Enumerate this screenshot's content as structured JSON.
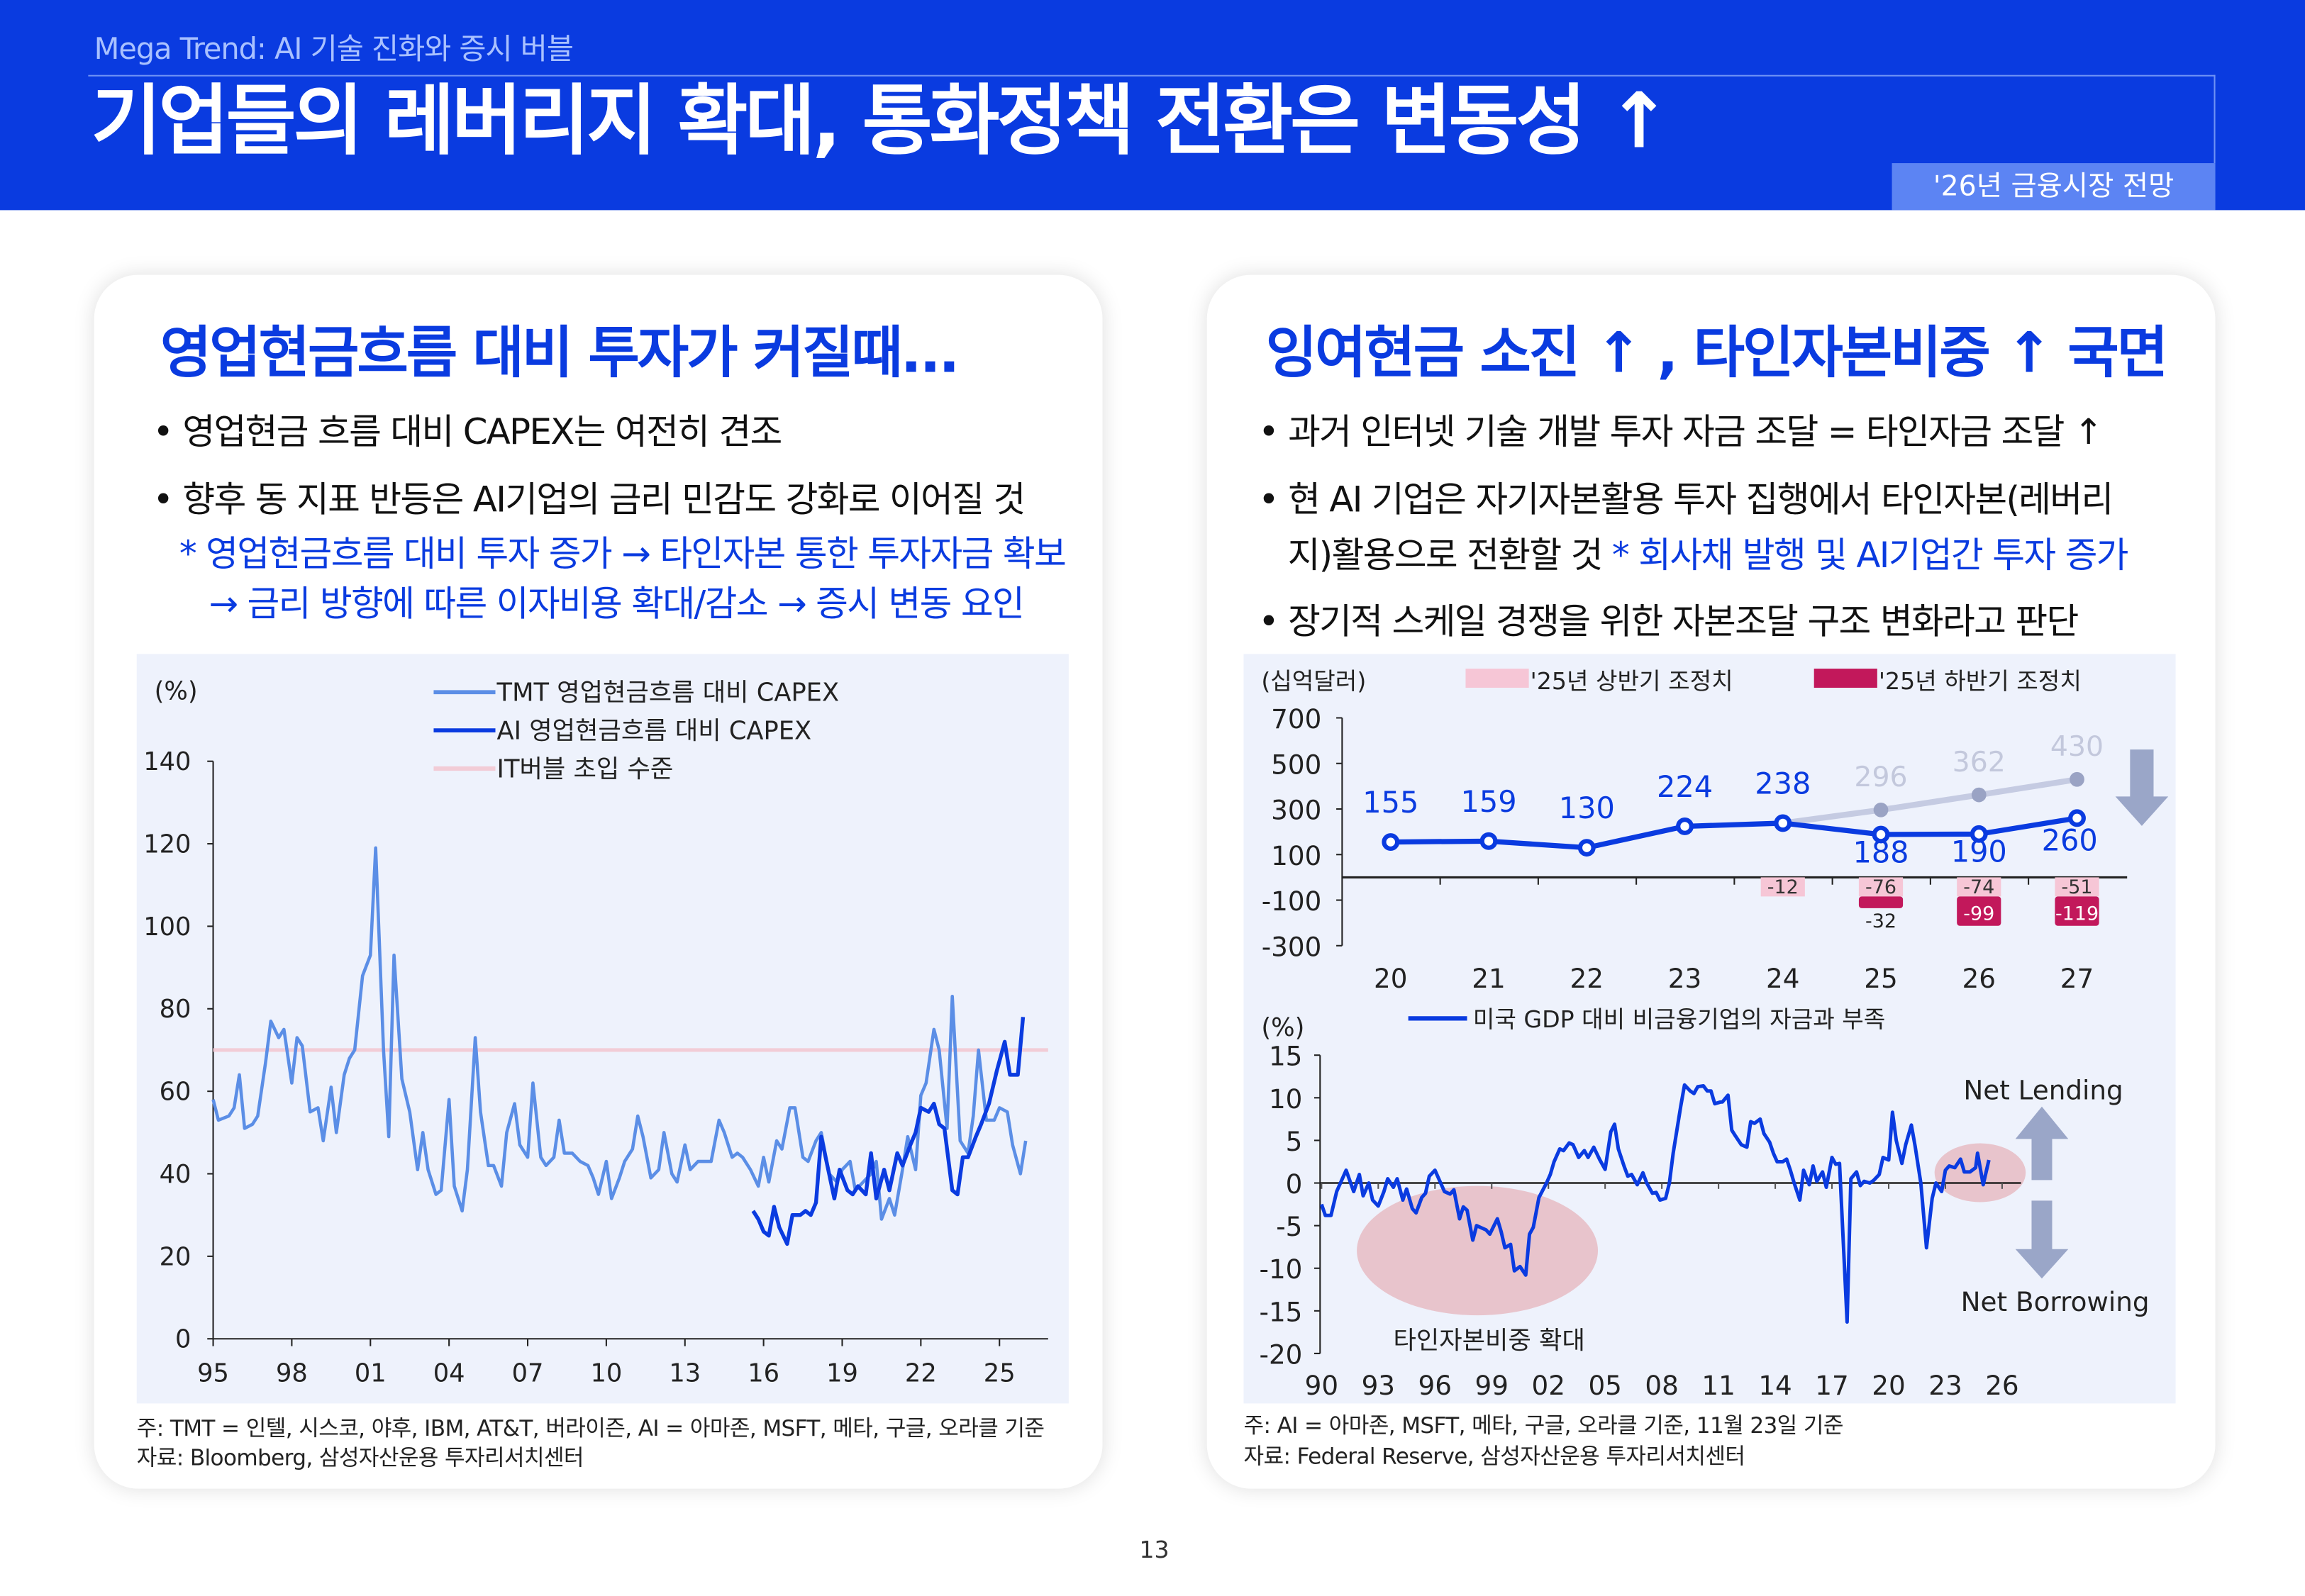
{
  "header": {
    "subtitle": "Mega Trend: AI 기술 진화와 증시 버블",
    "title": "기업들의 레버리지 확대, 통화정책 전환은 변동성 ↑",
    "tag": "'26년 금융시장 전망",
    "brand_color": "#0a3be0"
  },
  "left_card": {
    "heading": "영업현금흐름 대비 투자가 커질때...",
    "bullets": [
      "• 영업현금 흐름 대비 CAPEX는 여전히 견조",
      "• 향후 동 지표 반등은 AI기업의 금리 민감도 강화로 이어질 것"
    ],
    "notes": [
      "* 영업현금흐름 대비 투자 증가 → 타인자본 통한 투자자금 확보",
      "→ 금리 방향에 따른 이자비용 확대/감소 → 증시 변동 요인"
    ],
    "footnote": "주: TMT = 인텔, 시스코, 야후, IBM, AT&T, 버라이즌, AI = 아마존, MSFT, 메타, 구글, 오라클 기준",
    "source": "자료: Bloomberg, 삼성자산운용 투자리서치센터"
  },
  "right_card": {
    "heading": "잉여현금 소진 ↑ , 타인자본비중 ↑ 국면",
    "bullets": [
      "• 과거 인터넷 기술 개발 투자 자금 조달 = 타인자금 조달 ↑",
      "• 현 AI 기업은 자기자본활용 투자 집행에서 타인자본(레버리",
      "지)활용으로 전환할 것 ",
      "* 회사채 발행 및 AI기업간 투자 증가",
      "• 장기적 스케일 경쟁을 위한 자본조달 구조 변화라고 판단"
    ],
    "footnote": "주: AI = 아마존, MSFT, 메타, 구글, 오라클 기준, 11월 23일 기준",
    "source": "자료: Federal Reserve, 삼성자산운용 투자리서치센터"
  },
  "page_number": "13",
  "chart_data": [
    {
      "type": "line",
      "ylabel": "(%)",
      "ylim": [
        0,
        140
      ],
      "yticks": [
        "0",
        "20",
        "40",
        "60",
        "80",
        "100",
        "120",
        "140"
      ],
      "xticks": [
        "95",
        "98",
        "01",
        "04",
        "07",
        "10",
        "13",
        "16",
        "19",
        "22",
        "25"
      ],
      "legend_position": "top",
      "series": [
        {
          "name": "TMT 영업현금흐름 대비 CAPEX",
          "color": "#5b8ee6",
          "x": [
            1995.0,
            1995.2,
            1995.6,
            1995.8,
            1996.0,
            1996.2,
            1996.5,
            1996.7,
            1997.0,
            1997.2,
            1997.5,
            1997.7,
            1998.0,
            1998.2,
            1998.4,
            1998.7,
            1999.0,
            1999.2,
            1999.5,
            1999.7,
            2000.0,
            2000.2,
            2000.4,
            2000.7,
            2001.0,
            2001.2,
            2001.5,
            2001.7,
            2001.9,
            2002.2,
            2002.5,
            2002.8,
            2003.0,
            2003.2,
            2003.5,
            2003.7,
            2004.0,
            2004.2,
            2004.5,
            2004.7,
            2005.0,
            2005.2,
            2005.5,
            2005.7,
            2006.0,
            2006.2,
            2006.5,
            2006.7,
            2007.0,
            2007.2,
            2007.5,
            2007.7,
            2008.0,
            2008.2,
            2008.4,
            2008.7,
            2009.0,
            2009.3,
            2009.5,
            2009.7,
            2010.0,
            2010.2,
            2010.5,
            2010.7,
            2011.0,
            2011.2,
            2011.4,
            2011.7,
            2012.0,
            2012.2,
            2012.5,
            2012.7,
            2013.0,
            2013.2,
            2013.5,
            2014.0,
            2014.3,
            2014.5,
            2014.8,
            2015.0,
            2015.2,
            2015.5,
            2015.8,
            2016.0,
            2016.2,
            2016.5,
            2016.7,
            2017.0,
            2017.2,
            2017.5,
            2017.7,
            2018.0,
            2018.2,
            2018.5,
            2018.8,
            2019.0,
            2019.3,
            2019.5,
            2019.8,
            2020.1,
            2020.3,
            2020.5,
            2020.8,
            2021.0,
            2021.3,
            2021.5,
            2021.8,
            2022.0,
            2022.2,
            2022.5,
            2022.7,
            2023.0,
            2023.2,
            2023.5,
            2023.8,
            2024.0,
            2024.2,
            2024.5,
            2024.8,
            2025.0,
            2025.3,
            2025.5,
            2025.8,
            2026.0
          ],
          "y": [
            58,
            53,
            54,
            56,
            64,
            51,
            52,
            54,
            67,
            77,
            73,
            75,
            62,
            73,
            71,
            55,
            56,
            48,
            61,
            50,
            64,
            68,
            70,
            88,
            93,
            119,
            70,
            49,
            93,
            63,
            55,
            41,
            50,
            41,
            35,
            36,
            58,
            37,
            31,
            41,
            73,
            55,
            42,
            42,
            37,
            50,
            57,
            47,
            44,
            62,
            44,
            42,
            44,
            53,
            45,
            45,
            43,
            42,
            39,
            35,
            43,
            34,
            39,
            43,
            46,
            54,
            49,
            39,
            41,
            50,
            40,
            38,
            47,
            41,
            43,
            43,
            53,
            50,
            44,
            45,
            44,
            41,
            37,
            44,
            38,
            48,
            46,
            56,
            56,
            44,
            43,
            48,
            50,
            40,
            38,
            41,
            43,
            36,
            38,
            40,
            43,
            29,
            34,
            30,
            41,
            49,
            41,
            59,
            62,
            75,
            70,
            51,
            83,
            48,
            45,
            54,
            70,
            53,
            53,
            56,
            55,
            47,
            40,
            48
          ]
        },
        {
          "name": "AI 영업현금흐름 대비 CAPEX",
          "color": "#0a3be0",
          "x": [
            2015.6,
            2015.8,
            2016.0,
            2016.2,
            2016.4,
            2016.6,
            2016.9,
            2017.1,
            2017.4,
            2017.6,
            2017.8,
            2018.0,
            2018.2,
            2018.4,
            2018.7,
            2018.9,
            2019.2,
            2019.4,
            2019.6,
            2019.9,
            2020.1,
            2020.3,
            2020.6,
            2020.8,
            2021.1,
            2021.3,
            2021.6,
            2021.8,
            2022.0,
            2022.3,
            2022.5,
            2022.7,
            2022.9,
            2023.2,
            2023.4,
            2023.6,
            2023.8,
            2024.1,
            2024.3,
            2024.6,
            2024.9,
            2025.2,
            2025.4,
            2025.7,
            2025.9
          ],
          "y": [
            31,
            29,
            26,
            25,
            32,
            27,
            23,
            30,
            30,
            31,
            30,
            33,
            49,
            43,
            34,
            41,
            36,
            35,
            37,
            35,
            45,
            34,
            41,
            36,
            45,
            42,
            47,
            50,
            56,
            55,
            57,
            52,
            51,
            36,
            35,
            44,
            44,
            49,
            52,
            57,
            65,
            72,
            64,
            64,
            78
          ]
        },
        {
          "name": "IT버블 초입 수준",
          "color": "#f2ccd6",
          "constant": 70
        }
      ]
    },
    {
      "type": "line+bar",
      "unit_label": "(십억달러)",
      "ylim": [
        -300,
        700
      ],
      "yticks": [
        "700",
        "500",
        "300",
        "100",
        "-100",
        "-300"
      ],
      "categories": [
        "20",
        "21",
        "22",
        "23",
        "24",
        "25",
        "26",
        "27"
      ],
      "series": [
        {
          "role": "current",
          "color": "#0a3be0",
          "values": [
            155,
            159,
            130,
            224,
            238,
            188,
            190,
            260
          ]
        },
        {
          "role": "previous",
          "color": "#c5cbe2",
          "values": [
            null,
            null,
            null,
            null,
            238,
            296,
            362,
            430
          ]
        },
        {
          "name": "'25년 상반기 조정치",
          "color": "#f6c6d6",
          "values": [
            null,
            null,
            null,
            null,
            -12,
            -76,
            -74,
            -51
          ]
        },
        {
          "name": "'25년 하반기 조정치",
          "color": "#c2185b",
          "values": [
            null,
            null,
            null,
            null,
            null,
            -32,
            -99,
            -119
          ]
        }
      ],
      "arrow": "down-arrow"
    },
    {
      "type": "line",
      "ylabel": "(%)",
      "ylim": [
        -20,
        15
      ],
      "yticks": [
        "15",
        "10",
        "5",
        "0",
        "-5",
        "-10",
        "-15",
        "-20"
      ],
      "xticks": [
        "90",
        "93",
        "96",
        "99",
        "02",
        "05",
        "08",
        "11",
        "14",
        "17",
        "20",
        "23",
        "26"
      ],
      "series": [
        {
          "name": "미국 GDP 대비 비금융기업의 자금과 부족",
          "color": "#0a3be0",
          "x": [
            1990.0,
            1990.2,
            1990.5,
            1990.8,
            1991.3,
            1991.7,
            1992.0,
            1992.2,
            1992.5,
            1992.7,
            1993.0,
            1993.3,
            1993.5,
            1993.8,
            1994.0,
            1994.3,
            1994.5,
            1994.8,
            1995.0,
            1995.3,
            1995.5,
            1995.7,
            1996.0,
            1996.3,
            1996.5,
            1996.8,
            1997.0,
            1997.3,
            1997.5,
            1997.7,
            1998.0,
            1998.2,
            1998.5,
            1998.7,
            1998.9,
            1999.3,
            1999.5,
            1999.7,
            2000.0,
            2000.2,
            2000.5,
            2000.8,
            2001.0,
            2001.2,
            2001.5,
            2001.9,
            2002.1,
            2002.3,
            2002.6,
            2002.8,
            2003.1,
            2003.3,
            2003.6,
            2003.9,
            2004.1,
            2004.4,
            2004.7,
            2005.0,
            2005.3,
            2005.5,
            2005.7,
            2006.0,
            2006.2,
            2006.4,
            2006.7,
            2007.0,
            2007.2,
            2007.5,
            2007.7,
            2007.9,
            2008.2,
            2008.4,
            2008.6,
            2009.0,
            2009.2,
            2009.5,
            2009.7,
            2009.9,
            2010.2,
            2010.4,
            2010.6,
            2010.8,
            2011.1,
            2011.2,
            2011.5,
            2011.7,
            2011.9,
            2012.2,
            2012.5,
            2012.7,
            2012.9,
            2013.2,
            2013.4,
            2013.7,
            2013.9,
            2014.1,
            2014.4,
            2014.6,
            2014.8,
            2015.0,
            2015.3,
            2015.5,
            2015.8,
            2016.0,
            2016.2,
            2016.5,
            2016.7,
            2017.0,
            2017.2,
            2017.4,
            2017.8,
            2018.0,
            2018.3,
            2018.5,
            2018.7,
            2019.0,
            2019.2,
            2019.5,
            2019.7,
            2020.0,
            2020.2,
            2020.4,
            2020.7,
            2020.9,
            2021.2,
            2021.4,
            2021.7,
            2022.0,
            2022.3,
            2022.5,
            2022.8,
            2023.0,
            2023.2,
            2023.5,
            2023.8,
            2024.0,
            2024.3,
            2024.6,
            2024.7,
            2025.0,
            2025.3
          ],
          "y": [
            -2.5,
            -3.8,
            -3.8,
            -1,
            1.5,
            -1,
            1,
            -1.5,
            0,
            -2,
            -2.7,
            -1,
            0.5,
            -0.5,
            0.5,
            -2,
            -0.7,
            -3,
            -3.5,
            -1.7,
            -1.2,
            0.8,
            1.5,
            0,
            -1,
            -1.3,
            -0.8,
            -4.2,
            -2.8,
            -3.2,
            -6.7,
            -5,
            -5.3,
            -5.5,
            -6,
            -4.2,
            -5.7,
            -7.6,
            -7.2,
            -10.3,
            -9.8,
            -10.8,
            -6,
            -5.2,
            -1.7,
            0,
            1,
            2.5,
            4,
            3.8,
            4.7,
            4.5,
            3,
            3.8,
            3,
            4.2,
            2.8,
            1.6,
            6,
            6.9,
            4,
            2,
            0.8,
            1,
            -0.2,
            1.2,
            0,
            -1.2,
            -1.1,
            -2,
            -1.8,
            0,
            3.5,
            9,
            11.5,
            10.8,
            10.5,
            11.3,
            11.4,
            10.8,
            10.8,
            9.3,
            9.5,
            9.5,
            10.3,
            6.2,
            5.5,
            4.5,
            4.2,
            7.2,
            7,
            7.5,
            5.8,
            4.8,
            3.5,
            2.5,
            2.5,
            2.8,
            1.5,
            0,
            -2,
            1.5,
            -0.2,
            2,
            0.2,
            1.3,
            -0.5,
            3,
            2.2,
            2.3,
            -16.3,
            0.5,
            1.3,
            -0.3,
            0.2,
            0,
            0.3,
            1,
            3,
            2.7,
            8.3,
            5,
            2.3,
            4.5,
            6.8,
            4.3,
            0,
            -7.6,
            -1.8,
            0,
            -1,
            1.5,
            2,
            1.8,
            2.8,
            1.3,
            1.3,
            1.8,
            3.5,
            -0.2,
            2.7
          ]
        }
      ],
      "annotations": [
        "타인자본비중 확대",
        "Net Lending",
        "Net Borrowing"
      ],
      "highlight_color": "#e8c4cc",
      "arrow_color": "#9aa6c8"
    }
  ]
}
